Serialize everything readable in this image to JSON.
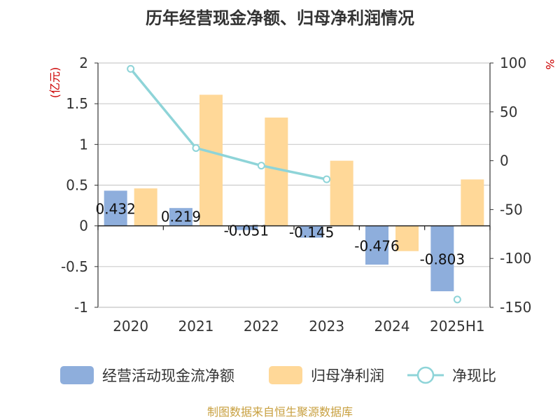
{
  "chart_data": {
    "type": "bar+line",
    "title": "历年经营现金净额、归母净利润情况",
    "left_unit": "(亿元)",
    "right_unit": "%",
    "categories": [
      "2020",
      "2021",
      "2022",
      "2023",
      "2024",
      "2025H1"
    ],
    "left_axis": {
      "min": -1,
      "max": 2,
      "ticks": [
        "2",
        "1.5",
        "1",
        "0.5",
        "0",
        "-0.5",
        "-1"
      ]
    },
    "right_axis": {
      "min": -150,
      "max": 100,
      "ticks": [
        "100",
        "50",
        "0",
        "-50",
        "-100",
        "-150"
      ]
    },
    "series": [
      {
        "name": "经营活动现金流净额",
        "type": "bar",
        "axis": "left",
        "color": "#8eaedc",
        "values": [
          0.432,
          0.219,
          -0.051,
          -0.145,
          -0.476,
          -0.803
        ],
        "labels": [
          "0.432",
          "0.219",
          "-0.051",
          "-0.145",
          "-0.476",
          "-0.803"
        ]
      },
      {
        "name": "归母净利润",
        "type": "bar",
        "axis": "left",
        "color": "#ffd898",
        "values": [
          0.46,
          1.61,
          1.33,
          0.8,
          -0.31,
          0.57
        ]
      },
      {
        "name": "净现比",
        "type": "line",
        "axis": "right",
        "color": "#8ed4d8",
        "values": [
          94,
          13,
          -5,
          -19,
          null,
          -142
        ]
      }
    ],
    "grid": true,
    "legend_position": "bottom"
  },
  "source": "制图数据来自恒生聚源数据库"
}
